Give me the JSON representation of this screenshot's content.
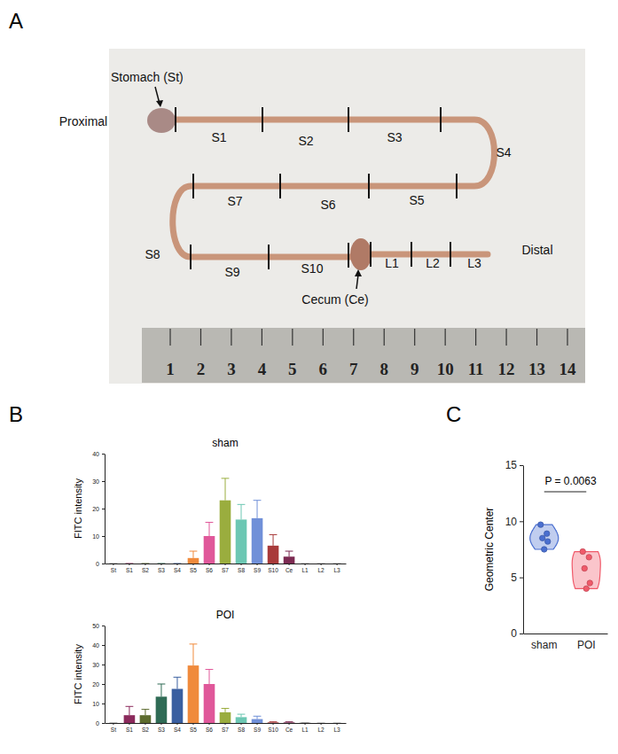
{
  "panel_labels": [
    "A",
    "B",
    "C"
  ],
  "photo": {
    "labels": [
      "Stomach (St)",
      "Proximal",
      "S1",
      "S2",
      "S3",
      "S4",
      "S5",
      "S6",
      "S7",
      "S8",
      "S9",
      "S10",
      "Cecum (Ce)",
      "L1",
      "L2",
      "L3",
      "Distal"
    ],
    "ruler_ticks": [
      1,
      2,
      3,
      4,
      5,
      6,
      7,
      8,
      9,
      10,
      11,
      12,
      13,
      14
    ]
  },
  "chart_data": [
    {
      "type": "bar",
      "title": "sham",
      "y_label": "FITC intensity",
      "categories": [
        "St",
        "S1",
        "S2",
        "S3",
        "S4",
        "S5",
        "S6",
        "S7",
        "S8",
        "S9",
        "S10",
        "Ce",
        "L1",
        "L2",
        "L3"
      ],
      "values": [
        0,
        0,
        0,
        0,
        0,
        2,
        10,
        23,
        16,
        16.5,
        6.5,
        2.5,
        0,
        0,
        0
      ],
      "error": [
        0,
        0,
        0,
        0,
        0,
        2.5,
        5,
        8,
        5.5,
        6.5,
        4,
        2,
        0,
        0,
        0
      ],
      "colors": [
        "#8a8a8a",
        "#8b2a5c",
        "#5c6b2e",
        "#2f6b55",
        "#3a5fa0",
        "#f08a3c",
        "#e0589a",
        "#9aad3e",
        "#6cc7b3",
        "#7090d8",
        "#a83a3a",
        "#7c2a52",
        "#a0a0a0",
        "#a0a0a0",
        "#a0a0a0"
      ],
      "ylim": [
        0,
        40
      ],
      "yticks": [
        0,
        10,
        20,
        30,
        40
      ]
    },
    {
      "type": "bar",
      "title": "POI",
      "y_label": "FITC intensity",
      "categories": [
        "St",
        "S1",
        "S2",
        "S3",
        "S4",
        "S5",
        "S6",
        "S7",
        "S8",
        "S9",
        "S10",
        "Ce",
        "L1",
        "L2",
        "L3"
      ],
      "values": [
        0,
        4,
        4,
        13.5,
        17.5,
        29.5,
        20,
        5.5,
        3,
        2,
        0.3,
        0.3,
        0.2,
        0,
        0
      ],
      "error": [
        0,
        4.5,
        3,
        6.5,
        6,
        11,
        7.5,
        2,
        1.5,
        1.5,
        0.3,
        0.3,
        0,
        0,
        0
      ],
      "colors": [
        "#8a8a8a",
        "#8b2a5c",
        "#5c6b2e",
        "#2f6b55",
        "#3a5fa0",
        "#f08a3c",
        "#e0589a",
        "#9aad3e",
        "#6cc7b3",
        "#7090d8",
        "#a83a3a",
        "#7c2a52",
        "#a0a0a0",
        "#a0a0a0",
        "#a0a0a0"
      ],
      "ylim": [
        0,
        50
      ],
      "yticks": [
        0,
        10,
        20,
        30,
        40,
        50
      ]
    },
    {
      "type": "violin",
      "y_label": "Geometric Center",
      "categories": [
        "sham",
        "POI"
      ],
      "values": [
        [
          9.7,
          8.9,
          8.5,
          8.2,
          7.5
        ],
        [
          7.3,
          6.8,
          5.8,
          4.5,
          4.0
        ]
      ],
      "colors": [
        "#4a6fd0",
        "#f05a6a"
      ],
      "ylim": [
        0,
        15
      ],
      "yticks": [
        0,
        5,
        10,
        15
      ],
      "annotations": [
        {
          "text": "P = 0.0063"
        }
      ]
    }
  ]
}
